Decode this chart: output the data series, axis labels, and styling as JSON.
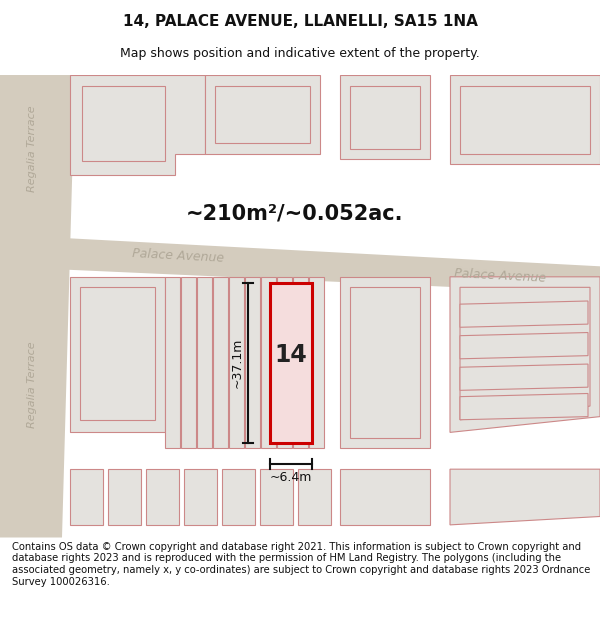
{
  "title": "14, PALACE AVENUE, LLANELLI, SA15 1NA",
  "subtitle": "Map shows position and indicative extent of the property.",
  "area_text": "~210m²/~0.052ac.",
  "dimension_height": "~37.1m",
  "dimension_width": "~6.4m",
  "property_number": "14",
  "street_name_left": "Palace Avenue",
  "street_name_right": "Palace Avenue",
  "side_street_top": "Regalia Terrace",
  "side_street_bottom": "Regalia Terrace",
  "footer_text": "Contains OS data © Crown copyright and database right 2021. This information is subject to Crown copyright and database rights 2023 and is reproduced with the permission of HM Land Registry. The polygons (including the associated geometry, namely x, y co-ordinates) are subject to Crown copyright and database rights 2023 Ordnance Survey 100026316.",
  "map_bg": "#eeece8",
  "road_color": "#d4ccbe",
  "building_fill": "#e4e2de",
  "building_stroke": "#cc8888",
  "highlight_fill": "#f5dddd",
  "highlight_stroke": "#cc0000",
  "dim_line_color": "#111111",
  "street_label_color": "#b0a898",
  "title_fontsize": 11,
  "subtitle_fontsize": 9,
  "footer_fontsize": 7.2
}
